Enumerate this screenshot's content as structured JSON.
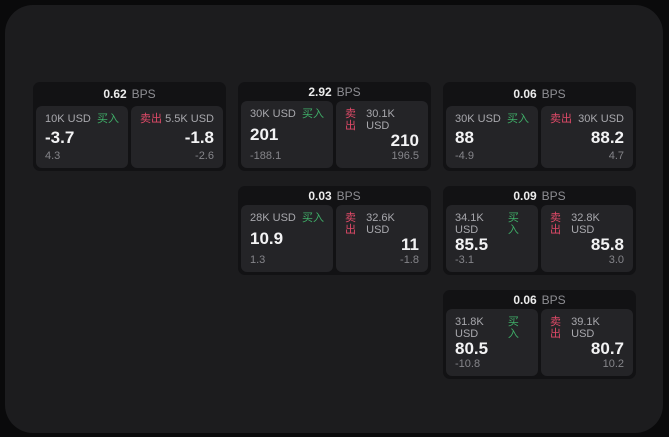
{
  "labels": {
    "bps_unit": "BPS",
    "buy": "买入",
    "sell": "卖出"
  },
  "colors": {
    "buy": "#3fae68",
    "sell": "#e04a68",
    "surface": "#1c1c1e",
    "card": "#121214",
    "panel": "#242427"
  },
  "cards": [
    {
      "bps": "0.62",
      "row": 1,
      "col": 1,
      "buy": {
        "amount": "10K USD",
        "value": "-3.7",
        "sub": "4.3"
      },
      "sell": {
        "amount": "5.5K USD",
        "value": "-1.8",
        "sub": "-2.6"
      }
    },
    {
      "bps": "2.92",
      "row": 1,
      "col": 2,
      "buy": {
        "amount": "30K USD",
        "value": "201",
        "sub": "-188.1"
      },
      "sell": {
        "amount": "30.1K USD",
        "value": "210",
        "sub": "196.5"
      }
    },
    {
      "bps": "0.06",
      "row": 1,
      "col": 3,
      "buy": {
        "amount": "30K USD",
        "value": "88",
        "sub": "-4.9"
      },
      "sell": {
        "amount": "30K USD",
        "value": "88.2",
        "sub": "4.7"
      }
    },
    {
      "bps": "0.03",
      "row": 2,
      "col": 2,
      "buy": {
        "amount": "28K USD",
        "value": "10.9",
        "sub": "1.3"
      },
      "sell": {
        "amount": "32.6K USD",
        "value": "11",
        "sub": "-1.8"
      }
    },
    {
      "bps": "0.09",
      "row": 2,
      "col": 3,
      "buy": {
        "amount": "34.1K USD",
        "value": "85.5",
        "sub": "-3.1"
      },
      "sell": {
        "amount": "32.8K USD",
        "value": "85.8",
        "sub": "3.0"
      }
    },
    {
      "bps": "0.06",
      "row": 3,
      "col": 3,
      "buy": {
        "amount": "31.8K USD",
        "value": "80.5",
        "sub": "-10.8"
      },
      "sell": {
        "amount": "39.1K USD",
        "value": "80.7",
        "sub": "10.2"
      }
    }
  ]
}
